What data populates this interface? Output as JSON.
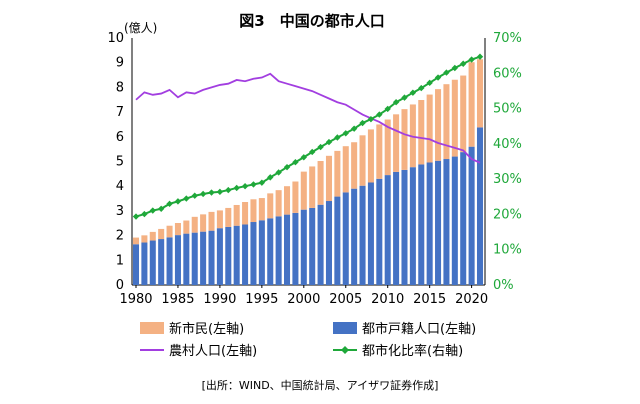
{
  "chart_data": {
    "type": "bar",
    "title": "図3　中国の都市人口",
    "source": "[出所：WIND、中国統計局、アイザワ証券作成]",
    "left_axis": {
      "unit_label": "(億人)",
      "min": 0,
      "max": 10,
      "ticks": [
        0,
        1,
        2,
        3,
        4,
        5,
        6,
        7,
        8,
        9,
        10
      ]
    },
    "right_axis": {
      "min": 0,
      "max": 70,
      "ticks": [
        0,
        10,
        20,
        30,
        40,
        50,
        60,
        70
      ],
      "tick_suffix": "%"
    },
    "x_ticks": [
      1980,
      1985,
      1990,
      1995,
      2000,
      2005,
      2010,
      2015,
      2020
    ],
    "x": [
      1980,
      1981,
      1982,
      1983,
      1984,
      1985,
      1986,
      1987,
      1988,
      1989,
      1990,
      1991,
      1992,
      1993,
      1994,
      1995,
      1996,
      1997,
      1998,
      1999,
      2000,
      2001,
      2002,
      2003,
      2004,
      2005,
      2006,
      2007,
      2008,
      2009,
      2010,
      2011,
      2012,
      2013,
      2014,
      2015,
      2016,
      2017,
      2018,
      2019,
      2020,
      2021
    ],
    "series": [
      {
        "name": "都市戸籍人口(左軸)",
        "type": "stacked-bar",
        "axis": "left",
        "color": "#4472c4",
        "values": [
          1.65,
          1.72,
          1.8,
          1.86,
          1.93,
          2.02,
          2.08,
          2.12,
          2.16,
          2.2,
          2.3,
          2.35,
          2.4,
          2.45,
          2.55,
          2.62,
          2.7,
          2.78,
          2.85,
          2.92,
          3.05,
          3.12,
          3.25,
          3.4,
          3.58,
          3.75,
          3.9,
          4.02,
          4.15,
          4.3,
          4.45,
          4.58,
          4.66,
          4.77,
          4.88,
          4.96,
          5.03,
          5.1,
          5.2,
          5.38,
          5.6,
          6.38
        ]
      },
      {
        "name": "新市民(左軸)",
        "type": "stacked-bar",
        "axis": "left",
        "color": "#f4b183",
        "values": [
          0.27,
          0.29,
          0.35,
          0.41,
          0.47,
          0.49,
          0.53,
          0.64,
          0.7,
          0.76,
          0.72,
          0.77,
          0.84,
          0.91,
          0.92,
          0.9,
          1.01,
          1.06,
          1.15,
          1.27,
          1.54,
          1.68,
          1.77,
          1.83,
          1.85,
          1.87,
          1.88,
          2.04,
          2.15,
          2.2,
          2.25,
          2.33,
          2.46,
          2.54,
          2.61,
          2.75,
          2.9,
          3.03,
          3.11,
          3.1,
          3.42,
          2.76
        ]
      },
      {
        "name": "農村人口(左軸)",
        "type": "line",
        "axis": "left",
        "color": "#a23ee0",
        "values": [
          7.5,
          7.8,
          7.7,
          7.75,
          7.9,
          7.6,
          7.8,
          7.75,
          7.9,
          8.0,
          8.1,
          8.15,
          8.3,
          8.25,
          8.35,
          8.4,
          8.55,
          8.25,
          8.15,
          8.05,
          7.95,
          7.85,
          7.7,
          7.55,
          7.4,
          7.3,
          7.1,
          6.9,
          6.75,
          6.6,
          6.4,
          6.25,
          6.1,
          6.0,
          5.95,
          5.9,
          5.75,
          5.65,
          5.55,
          5.45,
          5.1,
          4.95
        ]
      },
      {
        "name": "都市化比率(右軸)",
        "type": "line",
        "axis": "right",
        "color": "#1fa83a",
        "values": [
          19.4,
          20.1,
          21.1,
          21.6,
          23.0,
          23.7,
          24.5,
          25.3,
          25.8,
          26.2,
          26.4,
          26.9,
          27.5,
          28.0,
          28.5,
          29.0,
          30.5,
          31.9,
          33.4,
          34.8,
          36.2,
          37.7,
          39.1,
          40.5,
          41.8,
          43.0,
          44.3,
          45.9,
          47.0,
          48.3,
          49.9,
          51.8,
          53.1,
          54.5,
          55.8,
          57.3,
          58.8,
          60.2,
          61.5,
          62.7,
          63.9,
          64.7
        ]
      }
    ],
    "legend": [
      {
        "label": "新市民(左軸)",
        "kind": "bar",
        "color": "#f4b183"
      },
      {
        "label": "都市戸籍人口(左軸)",
        "kind": "bar",
        "color": "#4472c4"
      },
      {
        "label": "農村人口(左軸)",
        "kind": "line",
        "color": "#a23ee0"
      },
      {
        "label": "都市化比率(右軸)",
        "kind": "line-marker",
        "color": "#1fa83a"
      }
    ],
    "legend_position": "bottom"
  }
}
